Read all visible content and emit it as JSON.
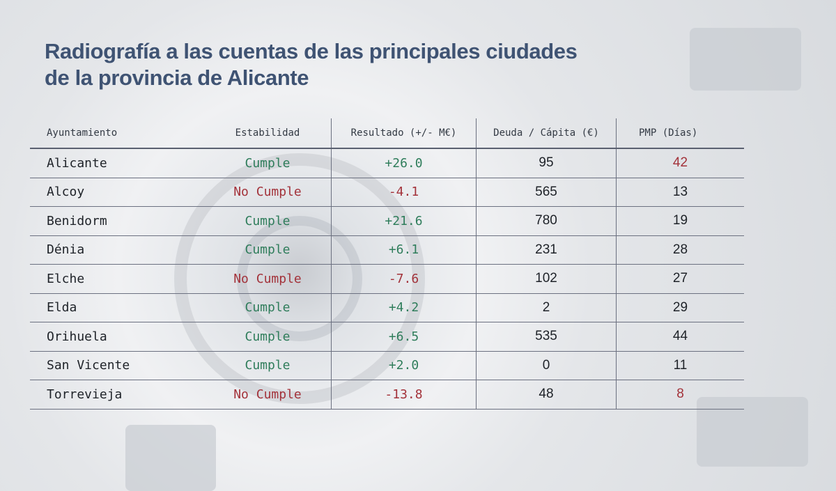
{
  "title": "Radiografía a las cuentas de las principales ciudades de la provincia de Alicante",
  "title_lines": [
    "Radiografía a las cuentas de las principales ciudades",
    "de la provincia de Alicante"
  ],
  "colors": {
    "title": "#3f5373",
    "good": "#2f7d5b",
    "bad": "#a3323a",
    "text": "#1e2228"
  },
  "chart_data": {
    "type": "table",
    "columns": [
      "Ayuntamiento",
      "Estabilidad",
      "Resultado (+/- M€)",
      "Deuda / Cápita (€)",
      "PMP (Días)"
    ],
    "rows": [
      [
        "Alicante",
        "Cumple",
        "+26.0",
        "95",
        "42"
      ],
      [
        "Alcoy",
        "No Cumple",
        "-4.1",
        "565",
        "13"
      ],
      [
        "Benidorm",
        "Cumple",
        "+21.6",
        "780",
        "19"
      ],
      [
        "Dénia",
        "Cumple",
        "+6.1",
        "231",
        "28"
      ],
      [
        "Elche",
        "No Cumple",
        "-7.6",
        "102",
        "27"
      ],
      [
        "Elda",
        "Cumple",
        "+4.2",
        "2",
        "29"
      ],
      [
        "Orihuela",
        "Cumple",
        "+6.5",
        "535",
        "44"
      ],
      [
        "San Vicente",
        "Cumple",
        "+2.0",
        "0",
        "11"
      ],
      [
        "Torrevieja",
        "No Cumple",
        "-13.8",
        "48",
        "8"
      ]
    ],
    "highlighted_pmp": [
      "42",
      "8"
    ]
  }
}
